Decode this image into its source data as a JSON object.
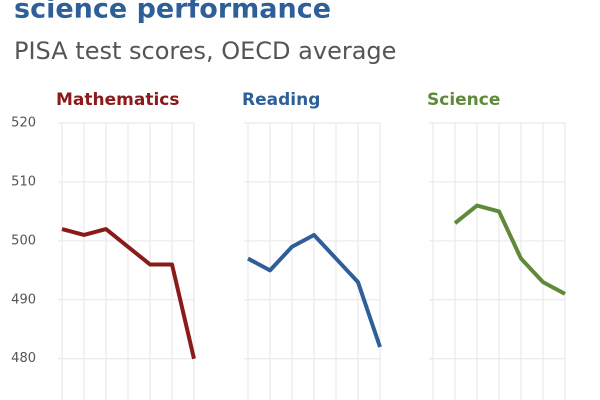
{
  "title": "science performance",
  "subtitle": "PISA test scores, OECD average",
  "chart_data": [
    {
      "type": "line",
      "title": "Mathematics",
      "color": "#8b1a1a",
      "categories": [
        null,
        null,
        null,
        null,
        null,
        null,
        null
      ],
      "values": [
        502,
        501,
        502,
        499,
        496,
        496,
        480
      ],
      "ylim": [
        473,
        520
      ],
      "yticks": [
        480,
        490,
        500,
        510,
        520
      ],
      "grid": true
    },
    {
      "type": "line",
      "title": "Reading",
      "color": "#2e5f99",
      "categories": [
        null,
        null,
        null,
        null,
        null,
        null,
        null
      ],
      "values": [
        497,
        495,
        499,
        501,
        497,
        493,
        482
      ],
      "ylim": [
        473,
        520
      ],
      "yticks": [
        480,
        490,
        500,
        510,
        520
      ],
      "grid": true
    },
    {
      "type": "line",
      "title": "Science",
      "color": "#5e8a3a",
      "categories": [
        null,
        null,
        null,
        null,
        null,
        null,
        null
      ],
      "values": [
        null,
        503,
        506,
        505,
        497,
        493,
        491
      ],
      "ylim": [
        473,
        520
      ],
      "yticks": [
        480,
        490,
        500,
        510,
        520
      ],
      "grid": true
    }
  ]
}
